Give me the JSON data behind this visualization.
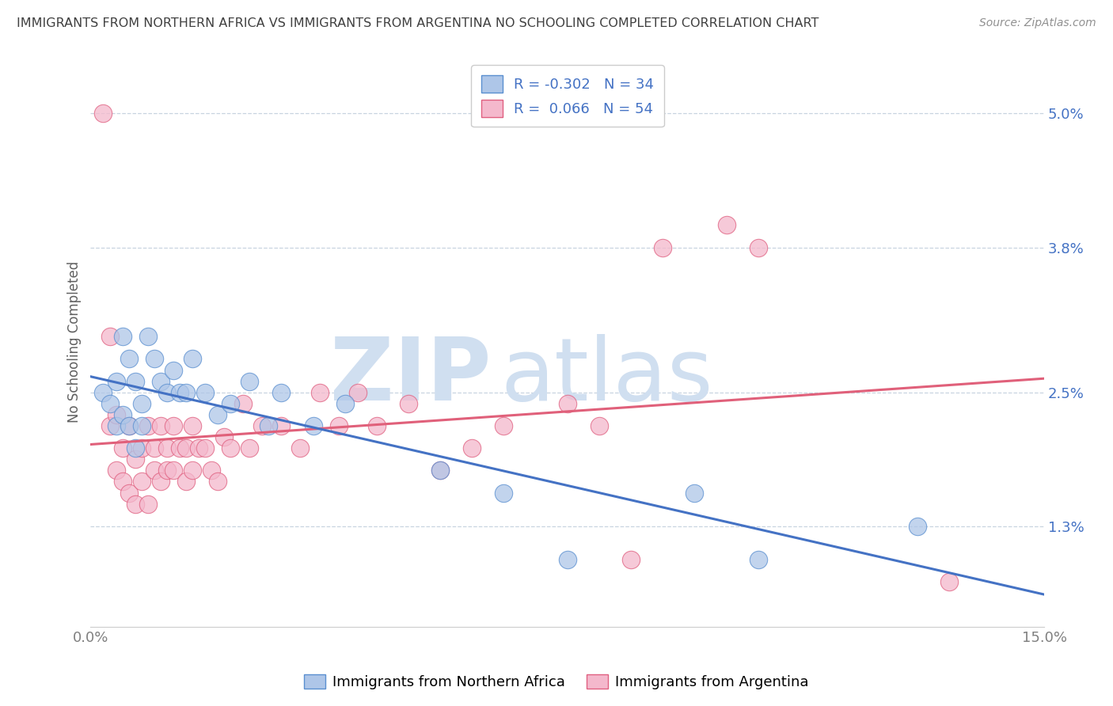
{
  "title": "IMMIGRANTS FROM NORTHERN AFRICA VS IMMIGRANTS FROM ARGENTINA NO SCHOOLING COMPLETED CORRELATION CHART",
  "source": "Source: ZipAtlas.com",
  "xlabel_blue": "Immigrants from Northern Africa",
  "xlabel_pink": "Immigrants from Argentina",
  "ylabel": "No Schooling Completed",
  "xmin": 0.0,
  "xmax": 0.15,
  "ymin": 0.004,
  "ymax": 0.055,
  "yticks": [
    0.013,
    0.025,
    0.038,
    0.05
  ],
  "ytick_labels": [
    "1.3%",
    "2.5%",
    "3.8%",
    "5.0%"
  ],
  "xtick_labels": [
    "0.0%",
    "15.0%"
  ],
  "blue_R": -0.302,
  "blue_N": 34,
  "pink_R": 0.066,
  "pink_N": 54,
  "blue_color": "#aec6e8",
  "pink_color": "#f4b8cc",
  "blue_edge_color": "#5a8fd0",
  "pink_edge_color": "#e06080",
  "blue_line_color": "#4472c4",
  "pink_line_color": "#e0607a",
  "watermark_zip": "ZIP",
  "watermark_atlas": "atlas",
  "watermark_color": "#d0dff0",
  "background_color": "#ffffff",
  "grid_color": "#c8d4e0",
  "title_color": "#404040",
  "legend_text_color": "#4472c4",
  "blue_scatter_x": [
    0.002,
    0.003,
    0.004,
    0.004,
    0.005,
    0.005,
    0.006,
    0.006,
    0.007,
    0.007,
    0.008,
    0.008,
    0.009,
    0.01,
    0.011,
    0.012,
    0.013,
    0.014,
    0.015,
    0.016,
    0.018,
    0.02,
    0.022,
    0.025,
    0.028,
    0.03,
    0.035,
    0.04,
    0.055,
    0.065,
    0.075,
    0.095,
    0.105,
    0.13
  ],
  "blue_scatter_y": [
    0.025,
    0.024,
    0.026,
    0.022,
    0.03,
    0.023,
    0.028,
    0.022,
    0.026,
    0.02,
    0.024,
    0.022,
    0.03,
    0.028,
    0.026,
    0.025,
    0.027,
    0.025,
    0.025,
    0.028,
    0.025,
    0.023,
    0.024,
    0.026,
    0.022,
    0.025,
    0.022,
    0.024,
    0.018,
    0.016,
    0.01,
    0.016,
    0.01,
    0.013
  ],
  "pink_scatter_x": [
    0.002,
    0.003,
    0.003,
    0.004,
    0.004,
    0.005,
    0.005,
    0.006,
    0.006,
    0.007,
    0.007,
    0.008,
    0.008,
    0.009,
    0.009,
    0.01,
    0.01,
    0.011,
    0.011,
    0.012,
    0.012,
    0.013,
    0.013,
    0.014,
    0.015,
    0.015,
    0.016,
    0.016,
    0.017,
    0.018,
    0.019,
    0.02,
    0.021,
    0.022,
    0.024,
    0.025,
    0.027,
    0.03,
    0.033,
    0.036,
    0.039,
    0.042,
    0.045,
    0.05,
    0.055,
    0.06,
    0.065,
    0.075,
    0.08,
    0.09,
    0.1,
    0.105,
    0.135,
    0.085
  ],
  "pink_scatter_y": [
    0.05,
    0.03,
    0.022,
    0.023,
    0.018,
    0.02,
    0.017,
    0.022,
    0.016,
    0.019,
    0.015,
    0.02,
    0.017,
    0.022,
    0.015,
    0.02,
    0.018,
    0.022,
    0.017,
    0.02,
    0.018,
    0.022,
    0.018,
    0.02,
    0.02,
    0.017,
    0.022,
    0.018,
    0.02,
    0.02,
    0.018,
    0.017,
    0.021,
    0.02,
    0.024,
    0.02,
    0.022,
    0.022,
    0.02,
    0.025,
    0.022,
    0.025,
    0.022,
    0.024,
    0.018,
    0.02,
    0.022,
    0.024,
    0.022,
    0.038,
    0.04,
    0.038,
    0.008,
    0.01
  ]
}
